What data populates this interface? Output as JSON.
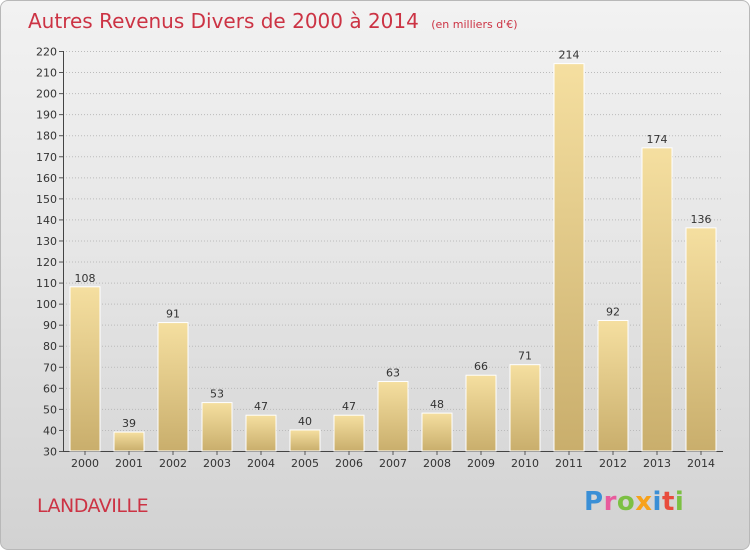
{
  "title": "Autres Revenus Divers de 2000 à 2014",
  "unit": "(en milliers d'€)",
  "place_name": "LANDAVILLE",
  "logo": {
    "text": "Proxiti",
    "letters": [
      "P",
      "r",
      "o",
      "x",
      "i",
      "t",
      "i"
    ]
  },
  "colors": {
    "title": "#cc3344",
    "bar_light": "#f5dfa0",
    "bar_dark": "#c9ae6c",
    "grid": "#bbbbbb"
  },
  "chart_data": {
    "type": "bar",
    "categories": [
      "2000",
      "2001",
      "2002",
      "2003",
      "2004",
      "2005",
      "2006",
      "2007",
      "2008",
      "2009",
      "2010",
      "2011",
      "2012",
      "2013",
      "2014"
    ],
    "values": [
      108,
      39,
      91,
      53,
      47,
      40,
      47,
      63,
      48,
      66,
      71,
      214,
      92,
      174,
      136
    ],
    "ylim": [
      30,
      220
    ],
    "yticks": [
      30,
      40,
      50,
      60,
      70,
      80,
      90,
      100,
      110,
      120,
      130,
      140,
      150,
      160,
      170,
      180,
      190,
      200,
      210,
      220
    ],
    "grid": true,
    "xlabel": "",
    "ylabel": ""
  }
}
